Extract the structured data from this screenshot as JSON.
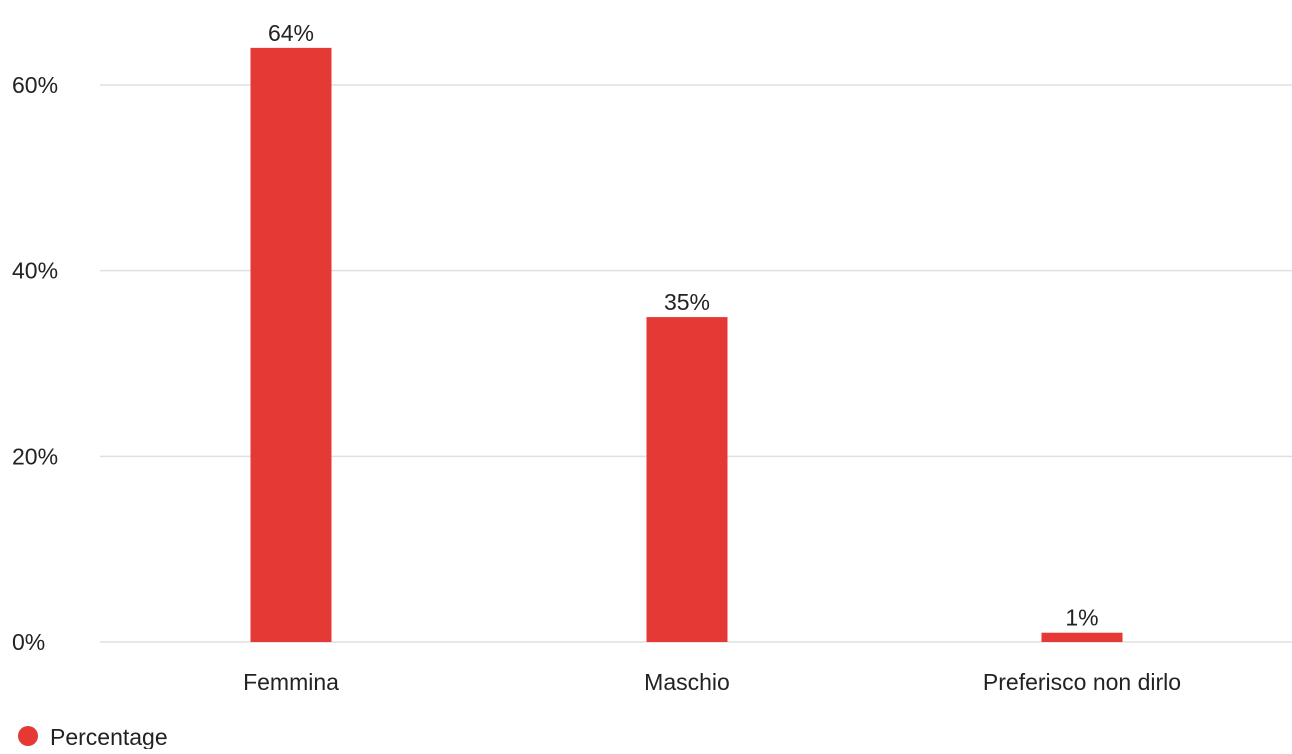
{
  "chart_data": {
    "type": "bar",
    "categories": [
      "Femmina",
      "Maschio",
      "Preferisco non dirlo"
    ],
    "series": [
      {
        "name": "Percentage",
        "values": [
          64,
          35,
          1
        ],
        "labels": [
          "64%",
          "35%",
          "1%"
        ],
        "color": "#e53935"
      }
    ],
    "ylim": [
      0,
      60
    ],
    "yticks": [
      0,
      20,
      40,
      60
    ],
    "ytick_labels": [
      "0%",
      "20%",
      "40%",
      "60%"
    ],
    "grid": true,
    "legend_position": "bottom-left"
  }
}
